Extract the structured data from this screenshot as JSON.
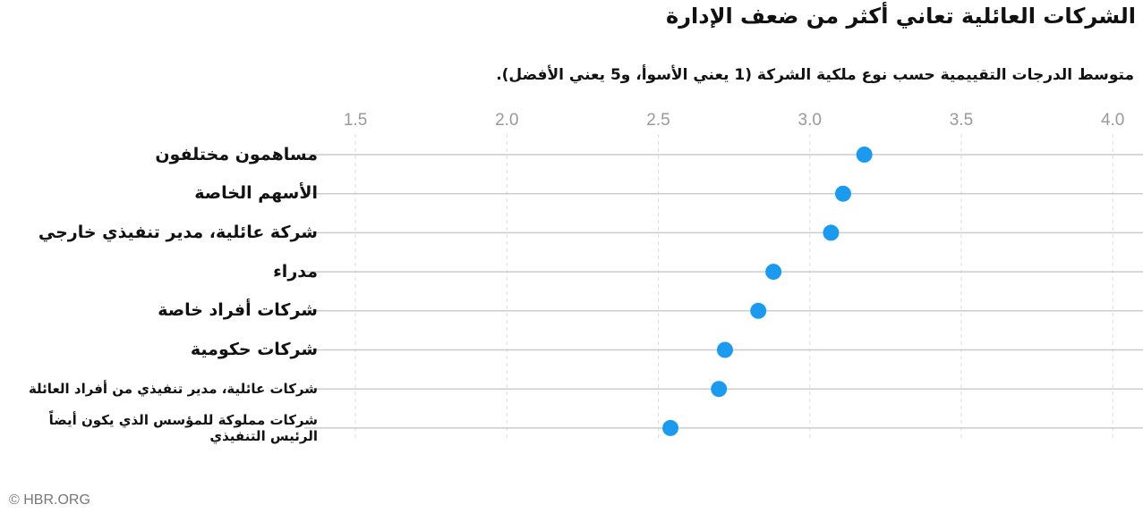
{
  "chart_data": {
    "type": "dot",
    "title": "الشركات العائلية تعاني أكثر من ضعف الإدارة",
    "subtitle": "متوسط الدرجات التقييمية حسب نوع ملكية الشركة (1 يعني الأسوأ، و5 يعني الأفضل).",
    "categories": [
      "مساهمون مختلفون",
      "الأسهم الخاصة",
      "شركة عائلية، مدير تنفيذي خارجي",
      "مدراء",
      "شركات أفراد خاصة",
      "شركات حكومية",
      "شركات عائلية، مدير تنفيذي من أفراد العائلة",
      "شركات مملوكة للمؤسس الذي يكون أيضاً الرئيس التنفيذي"
    ],
    "values": [
      3.18,
      3.11,
      3.07,
      2.88,
      2.83,
      2.72,
      2.7,
      2.54
    ],
    "color": "#1a9bf0",
    "xlim": [
      1.42,
      4.1
    ],
    "xticks": [
      1.5,
      {
        "value": 2,
        "label": "2.0"
      },
      2.5,
      {
        "value": 3,
        "label": "3.0"
      },
      3.5,
      {
        "value": 4,
        "label": "4.0"
      }
    ],
    "grid": true,
    "source": "© HBR.ORG"
  }
}
